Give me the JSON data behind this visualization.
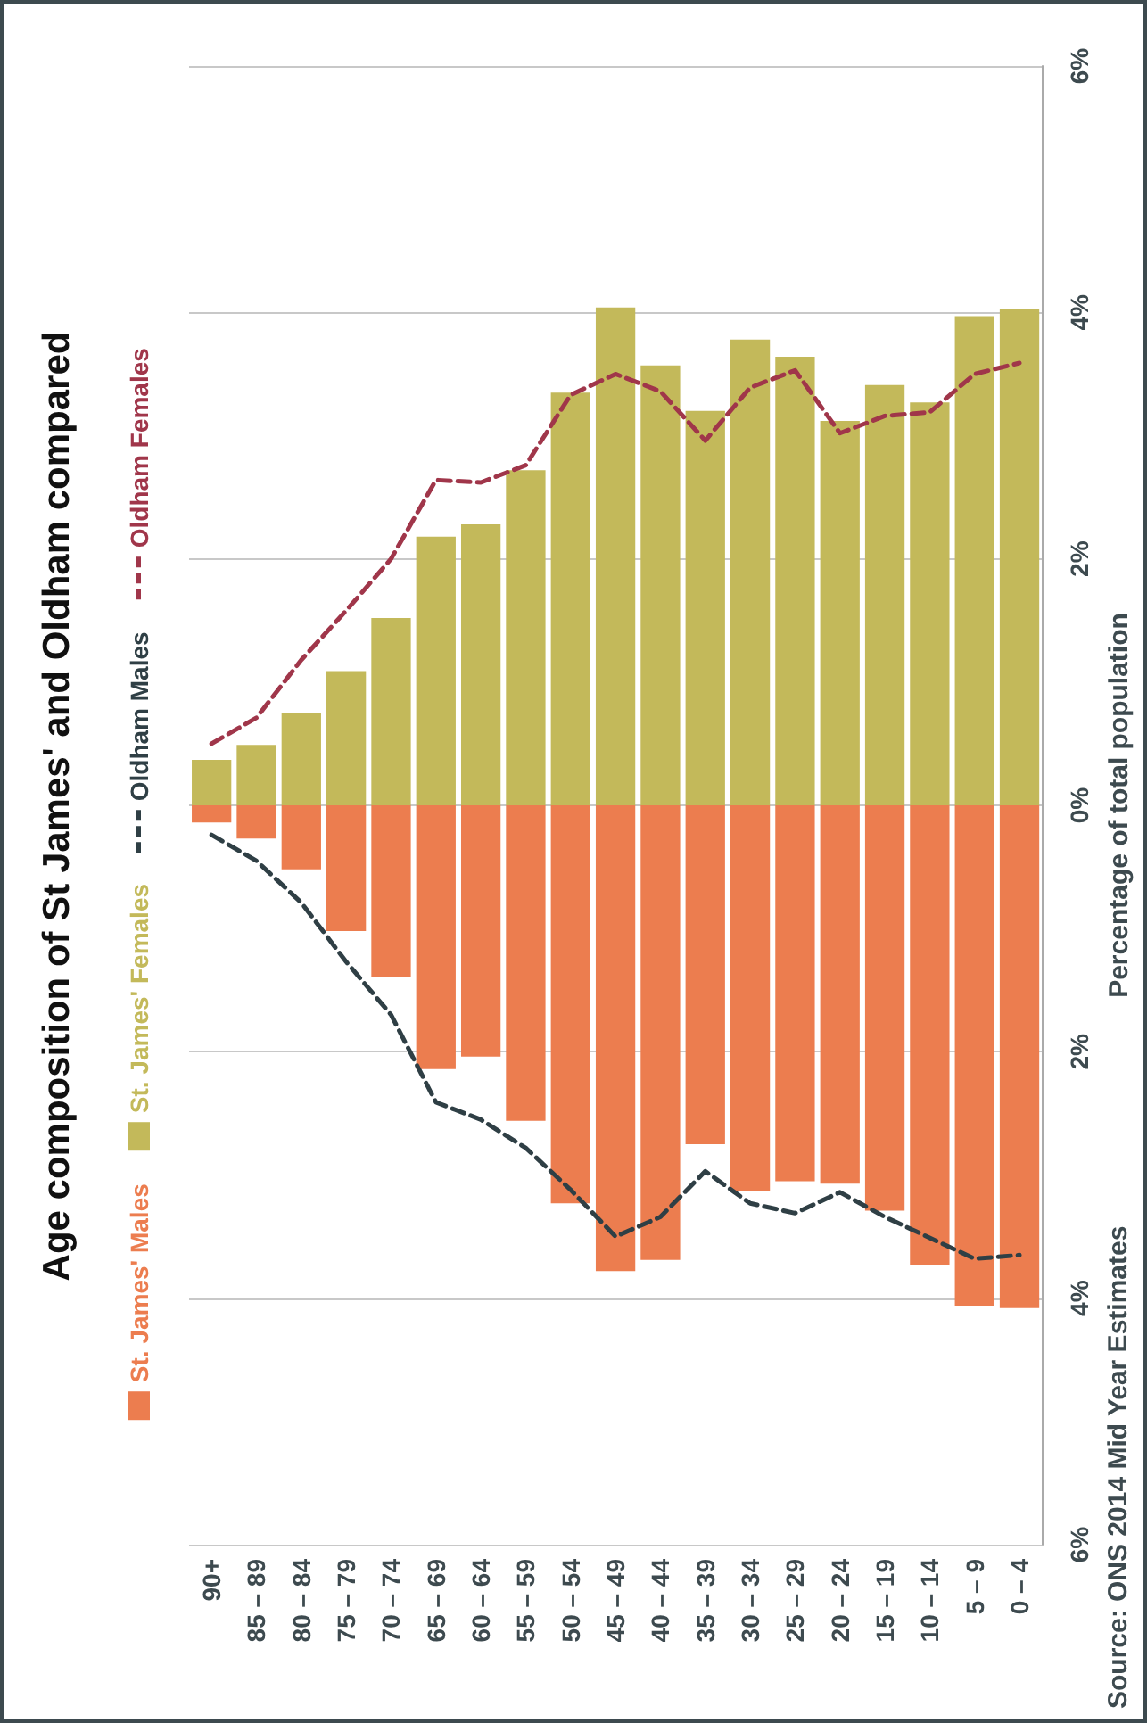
{
  "chart_data": {
    "type": "bar",
    "title": "Age composition of St James' and Oldham compared",
    "ylabel": "Percentage of total population",
    "annotations": [
      "Source: ONS 2014 Mid Year Estimates"
    ],
    "categories": [
      "90+",
      "85 – 89",
      "80 – 84",
      "75 – 79",
      "70 – 74",
      "65 – 69",
      "60 – 64",
      "55 – 59",
      "50 – 54",
      "45 – 49",
      "40 – 44",
      "35 – 39",
      "30 – 34",
      "25 – 29",
      "20 – 24",
      "15 – 19",
      "10 – 14",
      "5 – 9",
      "0 – 4"
    ],
    "series": [
      {
        "name": "St. James' Males",
        "color": "#ec7d4f",
        "values": [
          -0.14,
          -0.27,
          -0.52,
          -1.02,
          -1.39,
          -2.14,
          -2.04,
          -2.56,
          -3.23,
          -3.78,
          -3.69,
          -2.75,
          -3.13,
          -3.05,
          -3.07,
          -3.29,
          -3.73,
          -4.06,
          -4.08
        ]
      },
      {
        "name": "St. James' Females",
        "color": "#c3b95a",
        "values": [
          0.37,
          0.49,
          0.75,
          1.09,
          1.52,
          2.18,
          2.28,
          2.72,
          3.35,
          4.04,
          3.57,
          3.2,
          3.78,
          3.64,
          3.12,
          3.41,
          3.27,
          3.97,
          4.03
        ]
      },
      {
        "name": "Oldham Males",
        "type": "line",
        "color": "#2f3f45",
        "line_style": "dashed",
        "values": [
          -0.24,
          -0.45,
          -0.79,
          -1.27,
          -1.7,
          -2.41,
          -2.55,
          -2.78,
          -3.12,
          -3.5,
          -3.34,
          -2.97,
          -3.23,
          -3.31,
          -3.14,
          -3.34,
          -3.51,
          -3.68,
          -3.65
        ]
      },
      {
        "name": "Oldham Females",
        "type": "line",
        "color": "#a0364a",
        "line_style": "dashed",
        "values": [
          0.5,
          0.71,
          1.18,
          1.58,
          2.0,
          2.64,
          2.62,
          2.76,
          3.33,
          3.5,
          3.36,
          2.96,
          3.39,
          3.53,
          3.02,
          3.16,
          3.19,
          3.5,
          3.59
        ]
      }
    ],
    "stacked": true,
    "marker": "none",
    "ylim": [
      -6,
      6
    ],
    "yticks": [
      {
        "value": -6,
        "label": "6%"
      },
      {
        "value": -4,
        "label": "4%"
      },
      {
        "value": -2,
        "label": "2%"
      },
      {
        "value": 0,
        "label": "0%"
      },
      {
        "value": 2,
        "label": "2%"
      },
      {
        "value": 4,
        "label": "4%"
      },
      {
        "value": 6,
        "label": "6%"
      }
    ],
    "grid": "y",
    "legend": "left"
  }
}
